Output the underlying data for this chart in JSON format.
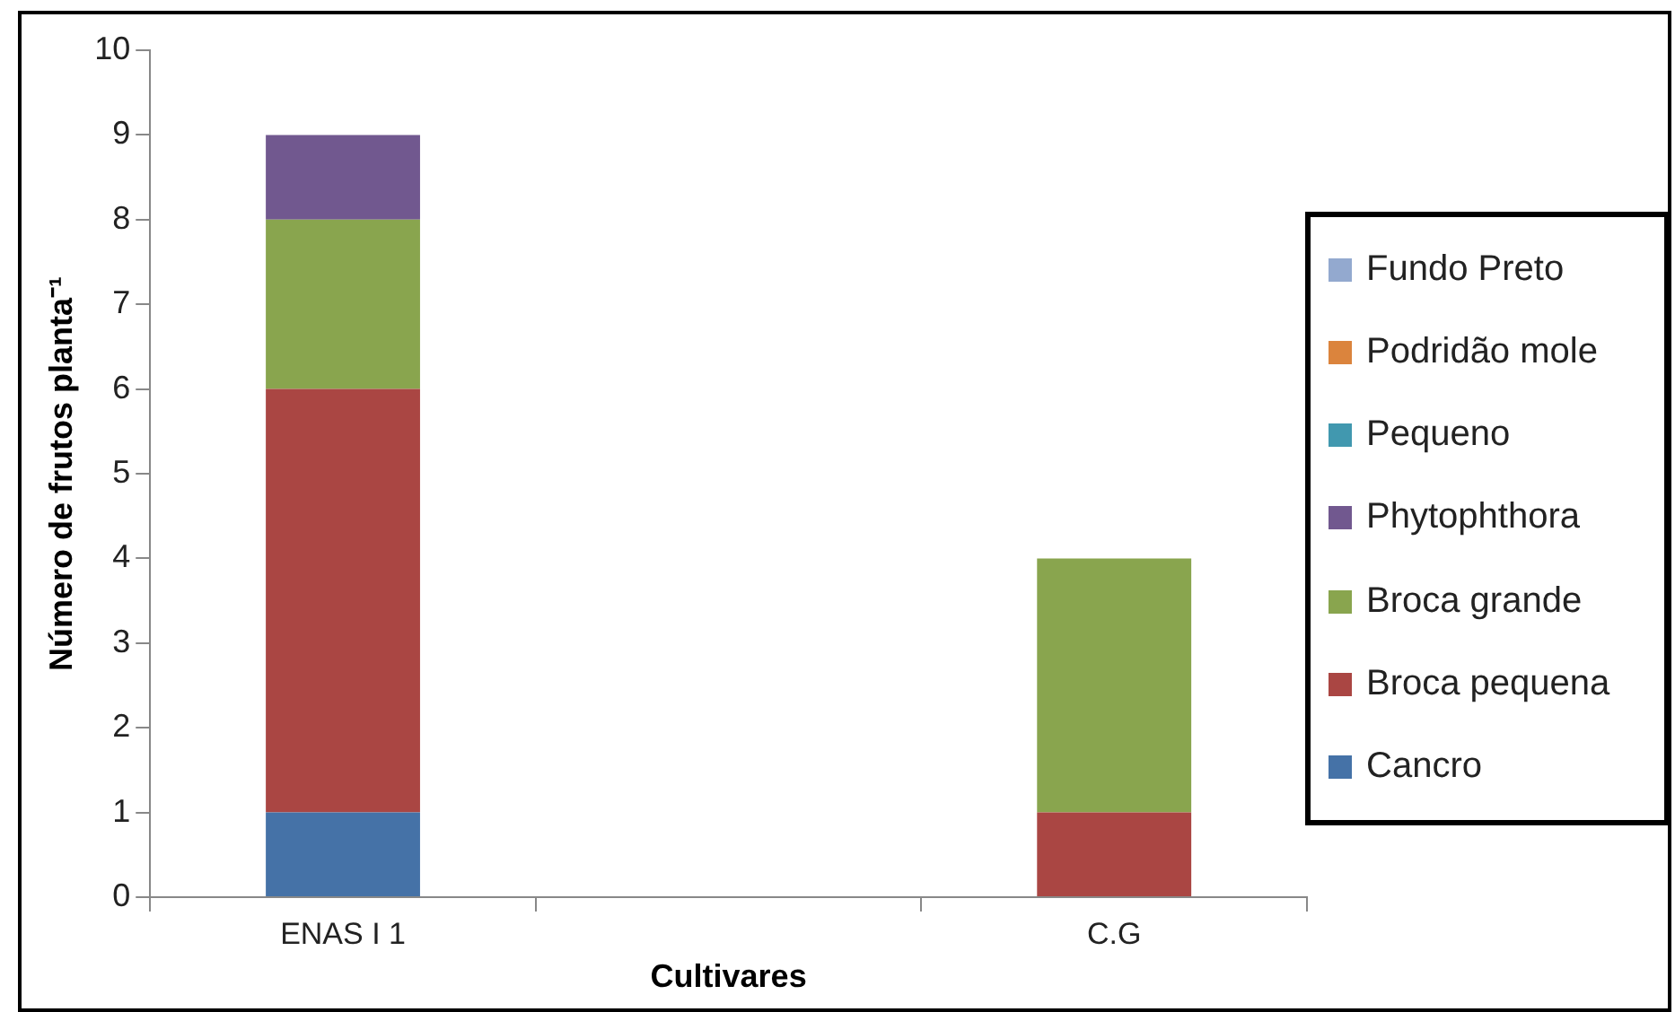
{
  "chart_data": {
    "type": "bar",
    "stacked": true,
    "xlabel": "Cultivares",
    "ylabel": "Número de frutos planta⁻¹",
    "categories": [
      "ENAS I 1",
      null,
      "C.G"
    ],
    "ylim": [
      0,
      10
    ],
    "yticks": [
      0,
      1,
      2,
      3,
      4,
      5,
      6,
      7,
      8,
      9,
      10
    ],
    "grid": false,
    "legend": "right",
    "series": [
      {
        "name": "Cancro",
        "color": "#4572a7",
        "values": [
          1,
          null,
          null
        ]
      },
      {
        "name": "Broca pequena",
        "color": "#aa4643",
        "values": [
          5,
          null,
          1
        ]
      },
      {
        "name": "Broca grande",
        "color": "#89a54e",
        "values": [
          2,
          null,
          3
        ]
      },
      {
        "name": "Phytophthora",
        "color": "#71588f",
        "values": [
          1,
          null,
          null
        ]
      },
      {
        "name": "Pequeno",
        "color": "#4198af",
        "values": [
          null,
          null,
          null
        ]
      },
      {
        "name": "Podridão mole",
        "color": "#db843d",
        "values": [
          null,
          null,
          null
        ]
      },
      {
        "name": "Fundo Preto",
        "color": "#93a9cf",
        "values": [
          null,
          null,
          null
        ]
      }
    ]
  }
}
